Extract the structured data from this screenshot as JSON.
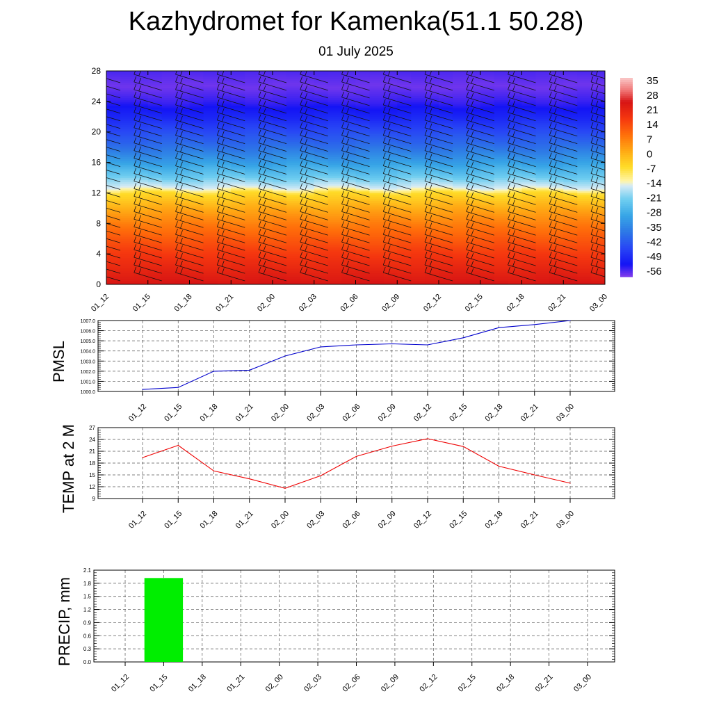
{
  "header": {
    "title": "Kazhydromet for Kamenka(51.1 50.28)",
    "date": "01 July 2025"
  },
  "time_labels": [
    "01_12",
    "01_15",
    "01_18",
    "01_21",
    "02_00",
    "02_03",
    "02_06",
    "02_09",
    "02_12",
    "02_15",
    "02_18",
    "02_21",
    "03_00"
  ],
  "colors": {
    "pmsl_line": "#0000cc",
    "temp_line": "#ee0000",
    "precip_bar": "#00ee00",
    "grid": "#555555"
  },
  "chart_data": [
    {
      "type": "heatmap",
      "title": "",
      "x": [
        "01_12",
        "01_15",
        "01_18",
        "01_21",
        "02_00",
        "02_03",
        "02_06",
        "02_09",
        "02_12",
        "02_15",
        "02_18",
        "02_21",
        "03_00"
      ],
      "ylim": [
        0,
        28
      ],
      "yticks": [
        "0",
        "4",
        "8",
        "12",
        "16",
        "20",
        "24",
        "28"
      ],
      "colorbar_labels": [
        "35",
        "28",
        "21",
        "14",
        "7",
        "0",
        "-7",
        "-14",
        "-21",
        "-28",
        "-35",
        "-42",
        "-49",
        "-56"
      ],
      "colorbar_range": [
        -60,
        38
      ],
      "temperature_profile": {
        "heights": [
          0,
          2,
          4,
          6,
          8,
          10,
          12,
          12.6,
          14,
          16,
          18,
          20,
          22,
          24,
          26,
          28
        ],
        "values": [
          26,
          22,
          18,
          13,
          8,
          2,
          -6,
          -14,
          -22,
          -31,
          -39,
          -45,
          -51,
          -56,
          -59,
          -57
        ]
      },
      "wind_barbs": true
    },
    {
      "type": "line",
      "ylabel": "PMSL",
      "ylim": [
        1000,
        1007
      ],
      "yticks": [
        "1000.0",
        "1001.0",
        "1002.0",
        "1003.0",
        "1004.0",
        "1005.0",
        "1006.0",
        "1007.0"
      ],
      "x": [
        "01_12",
        "01_15",
        "01_18",
        "01_21",
        "02_00",
        "02_03",
        "02_06",
        "02_09",
        "02_12",
        "02_15",
        "02_18",
        "02_21",
        "03_00"
      ],
      "values": [
        1000.2,
        1000.4,
        1002.0,
        1002.1,
        1003.5,
        1004.4,
        1004.6,
        1004.7,
        1004.6,
        1005.3,
        1006.3,
        1006.6,
        1007.0
      ]
    },
    {
      "type": "line",
      "ylabel": "TEMP at 2 M",
      "ylim": [
        9,
        27
      ],
      "yticks": [
        "9",
        "12",
        "15",
        "18",
        "21",
        "24",
        "27"
      ],
      "x": [
        "01_12",
        "01_15",
        "01_18",
        "01_21",
        "02_00",
        "02_03",
        "02_06",
        "02_09",
        "02_12",
        "02_15",
        "02_18",
        "02_21",
        "03_00"
      ],
      "values": [
        19.4,
        22.5,
        16.0,
        14.0,
        11.6,
        14.8,
        19.7,
        22.3,
        24.2,
        22.2,
        17.2,
        15.0,
        12.9
      ]
    },
    {
      "type": "bar",
      "ylabel": "PRECIP, mm",
      "ylim": [
        0,
        2.1
      ],
      "yticks": [
        "0.0",
        "0.3",
        "0.6",
        "0.9",
        "1.2",
        "1.5",
        "1.8",
        "2.1"
      ],
      "categories": [
        "01_12",
        "01_15",
        "01_18",
        "01_21",
        "02_00",
        "02_03",
        "02_06",
        "02_09",
        "02_12",
        "02_15",
        "02_18",
        "02_21",
        "03_00"
      ],
      "values": [
        0,
        1.92,
        0,
        0,
        0,
        0,
        0,
        0,
        0,
        0,
        0,
        0,
        0
      ]
    }
  ]
}
